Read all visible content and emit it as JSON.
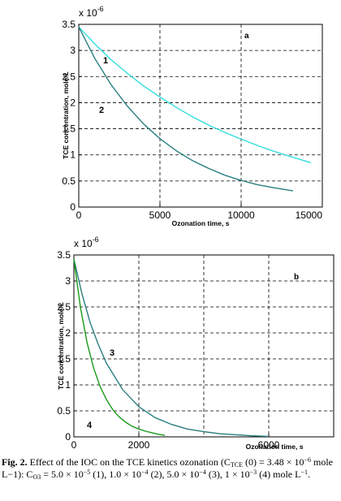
{
  "chart_data": [
    {
      "type": "line",
      "panel_label": "a",
      "xlabel": "Ozonation time, s",
      "ylabel": "TCE concentration, mole/L",
      "y_multiplier": "x 10",
      "y_exponent": "-6",
      "xlim": [
        0,
        15000
      ],
      "ylim": [
        0,
        3.5
      ],
      "xticks": [
        "0",
        "5000",
        "10000",
        "15000"
      ],
      "yticks": [
        "0",
        "0.5",
        "1",
        "1.5",
        "2",
        "2.5",
        "3",
        "3.5"
      ],
      "grid": "dashed",
      "series": [
        {
          "name": "1",
          "color": "#33dddd",
          "x": [
            0,
            1000,
            2000,
            3000,
            4000,
            5000,
            6000,
            7000,
            8000,
            9000,
            10000,
            11000,
            12000,
            13000,
            14300
          ],
          "y": [
            3.45,
            3.12,
            2.82,
            2.56,
            2.32,
            2.11,
            1.91,
            1.73,
            1.57,
            1.43,
            1.3,
            1.18,
            1.07,
            0.97,
            0.85
          ]
        },
        {
          "name": "2",
          "color": "#2a7f7f",
          "x": [
            0,
            1000,
            2000,
            3000,
            4000,
            5000,
            6000,
            7000,
            8000,
            9000,
            10000,
            11000,
            12000,
            13200
          ],
          "y": [
            3.45,
            2.84,
            2.34,
            1.93,
            1.59,
            1.31,
            1.08,
            0.89,
            0.74,
            0.61,
            0.51,
            0.43,
            0.37,
            0.31
          ]
        }
      ]
    },
    {
      "type": "line",
      "panel_label": "b",
      "xlabel": "Ozonation time, s",
      "ylabel": "TCE concentration, mole/L",
      "y_multiplier": "x 10",
      "y_exponent": "-6",
      "xlim": [
        0,
        8000
      ],
      "ylim": [
        0,
        3.5
      ],
      "xticks": [
        {
          "value": 0,
          "label": "0"
        },
        {
          "value": 2000,
          "label": "2000"
        },
        {
          "value": 6000,
          "label": "6000"
        }
      ],
      "yticks": [
        "0",
        "0.5",
        "1",
        "1.5",
        "2",
        "2.5",
        "3",
        "3.5"
      ],
      "grid": "dashed",
      "series": [
        {
          "name": "3",
          "color": "#2a7f7f",
          "x": [
            0,
            250,
            500,
            750,
            1000,
            1500,
            2000,
            2500,
            3000,
            3500,
            4000,
            4500,
            5000,
            5500,
            6000
          ],
          "y": [
            3.42,
            2.75,
            2.2,
            1.78,
            1.42,
            0.91,
            0.58,
            0.37,
            0.24,
            0.15,
            0.1,
            0.06,
            0.04,
            0.02,
            0.01
          ]
        },
        {
          "name": "4",
          "color": "#1a9a1a",
          "x": [
            0,
            200,
            400,
            600,
            800,
            1000,
            1200,
            1400,
            1600,
            1800,
            2000,
            2200,
            2400,
            2600,
            2800
          ],
          "y": [
            3.42,
            2.5,
            1.83,
            1.34,
            0.98,
            0.72,
            0.52,
            0.38,
            0.28,
            0.2,
            0.15,
            0.11,
            0.08,
            0.05,
            0.03
          ]
        }
      ]
    }
  ],
  "caption": {
    "fig_label": "Fig. 2.",
    "text_1": " Effect of the IOC on the TCE kinetics ozonation (C",
    "sub_tce": "TCE",
    "text_2": " (0) = 3.48 × 10",
    "sup_1": "−6",
    "text_3": " mole L−1): C",
    "sub_o3": "O3",
    "text_4": " = 5.0 × 10",
    "sup_2": "−5",
    "text_5": " (1), 1.0 × 10",
    "sup_3": "−4",
    "text_6": " (2), 5.0 × 10",
    "sup_4": "−4",
    "text_7": " (3), 1 × 10",
    "sup_5": "−3",
    "text_8": " (4) mole L",
    "sup_6": "−1",
    "text_9": "."
  }
}
